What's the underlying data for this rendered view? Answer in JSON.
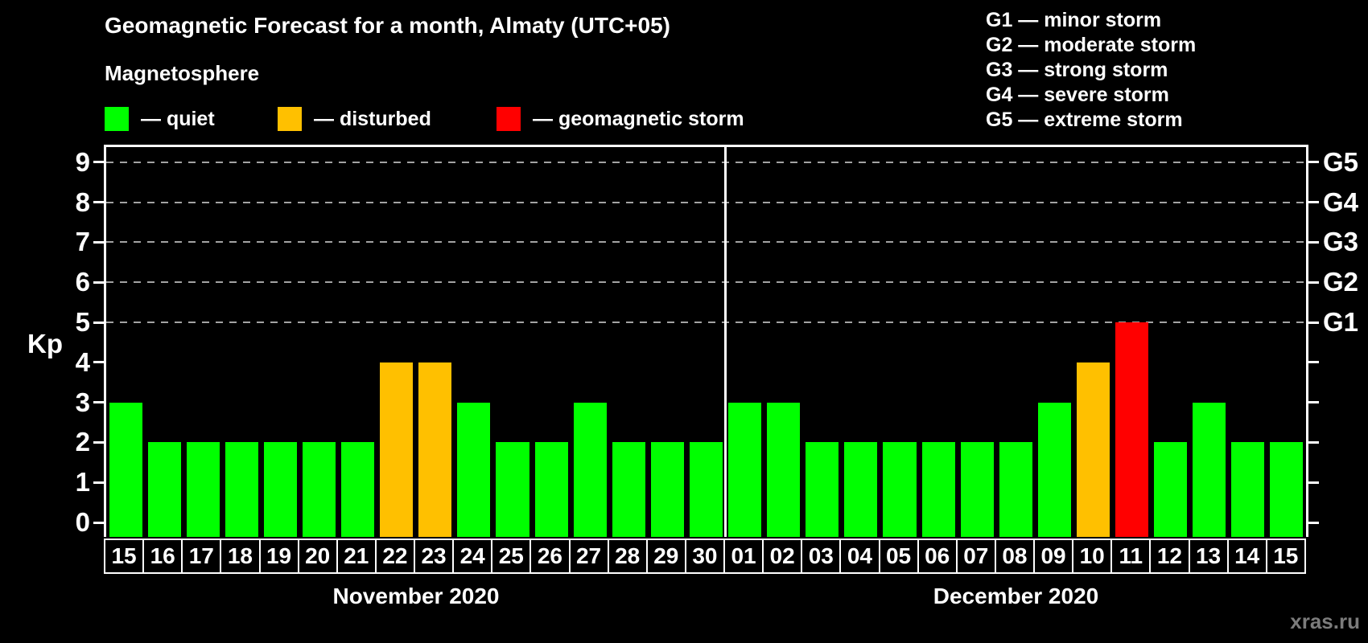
{
  "title": "Geomagnetic Forecast for a month, Almaty (UTC+05)",
  "subtitle": "Magnetosphere",
  "legend": {
    "items": [
      {
        "key": "quiet",
        "label": "— quiet",
        "color": "#00ff00"
      },
      {
        "key": "disturbed",
        "label": "— disturbed",
        "color": "#ffc000"
      },
      {
        "key": "storm",
        "label": "— geomagnetic storm",
        "color": "#ff0000"
      }
    ]
  },
  "g_legend": [
    "G1 — minor storm",
    "G2 — moderate storm",
    "G3 — strong storm",
    "G4 — severe storm",
    "G5 — extreme storm"
  ],
  "watermark": "xras.ru",
  "axes": {
    "y_label": "Kp",
    "y_ticks": [
      "0",
      "1",
      "2",
      "3",
      "4",
      "5",
      "6",
      "7",
      "8",
      "9"
    ],
    "right_axis_labels": [
      {
        "label": "G1",
        "kp": 5
      },
      {
        "label": "G2",
        "kp": 6
      },
      {
        "label": "G3",
        "kp": 7
      },
      {
        "label": "G4",
        "kp": 8
      },
      {
        "label": "G5",
        "kp": 9
      }
    ],
    "gridline_kp": [
      5,
      6,
      7,
      8,
      9
    ]
  },
  "chart_data": {
    "type": "bar",
    "title": "Geomagnetic Forecast for a month, Almaty (UTC+05)",
    "ylabel": "Kp",
    "ylim": [
      0,
      9
    ],
    "legend_position": "top-left",
    "grid": "horizontal dashed lines at Kp 5,6,7,8,9 (G1..G5)",
    "level_colors": {
      "quiet": "#00ff00",
      "disturbed": "#ffc000",
      "storm": "#ff0000"
    },
    "groups": [
      {
        "month": "November 2020",
        "days": [
          "15",
          "16",
          "17",
          "18",
          "19",
          "20",
          "21",
          "22",
          "23",
          "24",
          "25",
          "26",
          "27",
          "28",
          "29",
          "30"
        ],
        "values": [
          3,
          2,
          2,
          2,
          2,
          2,
          2,
          4,
          4,
          3,
          2,
          2,
          3,
          2,
          2,
          2
        ],
        "levels": [
          "quiet",
          "quiet",
          "quiet",
          "quiet",
          "quiet",
          "quiet",
          "quiet",
          "disturbed",
          "disturbed",
          "quiet",
          "quiet",
          "quiet",
          "quiet",
          "quiet",
          "quiet",
          "quiet"
        ]
      },
      {
        "month": "December 2020",
        "days": [
          "01",
          "02",
          "03",
          "04",
          "05",
          "06",
          "07",
          "08",
          "09",
          "10",
          "11",
          "12",
          "13",
          "14",
          "15"
        ],
        "values": [
          3,
          3,
          2,
          2,
          2,
          2,
          2,
          2,
          3,
          4,
          5,
          2,
          3,
          2,
          2
        ],
        "levels": [
          "quiet",
          "quiet",
          "quiet",
          "quiet",
          "quiet",
          "quiet",
          "quiet",
          "quiet",
          "quiet",
          "disturbed",
          "storm",
          "quiet",
          "quiet",
          "quiet",
          "quiet"
        ]
      }
    ]
  }
}
